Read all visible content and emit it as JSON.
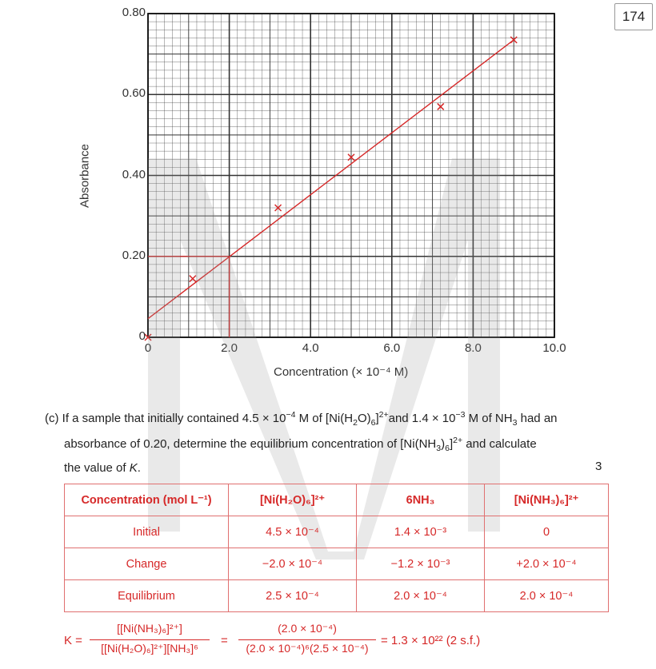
{
  "page_number": "174",
  "chart_data": {
    "type": "scatter",
    "xlabel": "Concentration (× 10⁻⁴ M)",
    "ylabel": "Absorbance",
    "xlim": [
      0,
      10
    ],
    "ylim": [
      0,
      0.8
    ],
    "x_ticks": [
      "0",
      "2.0",
      "4.0",
      "6.0",
      "8.0",
      "10.0"
    ],
    "y_ticks": [
      "0",
      "0.20",
      "0.40",
      "0.60",
      "0.80"
    ],
    "grid": true,
    "points": [
      {
        "x": 0,
        "y": 0
      },
      {
        "x": 1.1,
        "y": 0.145
      },
      {
        "x": 3.2,
        "y": 0.32
      },
      {
        "x": 5.0,
        "y": 0.445
      },
      {
        "x": 7.2,
        "y": 0.57
      },
      {
        "x": 9.0,
        "y": 0.735
      }
    ],
    "fit_line": {
      "x": [
        0,
        9.0
      ],
      "y": [
        0.046,
        0.735
      ]
    },
    "reading": {
      "x": 2.0,
      "y": 0.2
    }
  },
  "question": {
    "label": "(c)",
    "line1_a": "If a sample that initially contained 4.5 × 10",
    "line1_b": "−4",
    "line1_c": " M of [Ni(H",
    "line1_d": "2",
    "line1_e": "O)",
    "line1_f": "6",
    "line1_g": "]",
    "line1_h": "2+",
    "line1_i": "and 1.4 × 10",
    "line1_j": "−3",
    "line1_k": " M of NH",
    "line1_l": "3",
    "line1_m": " had an",
    "line2_a": "absorbance of 0.20, determine the equilibrium concentration of [Ni(NH",
    "line2_b": "3",
    "line2_c": ")",
    "line2_d": "6",
    "line2_e": "]",
    "line2_f": "2+",
    "line2_g": " and calculate",
    "line3_a": "the value of ",
    "line3_b": "K",
    "line3_c": ".",
    "marks": "3"
  },
  "table": {
    "headers": [
      "Concentration (mol L⁻¹)",
      "[Ni(H₂O)₆]²⁺",
      "6NH₃",
      "[Ni(NH₃)₆]²⁺"
    ],
    "rows": [
      [
        "Initial",
        "4.5 × 10⁻⁴",
        "1.4 × 10⁻³",
        "0"
      ],
      [
        "Change",
        "−2.0 × 10⁻⁴",
        "−1.2 × 10⁻³",
        "+2.0 × 10⁻⁴"
      ],
      [
        "Equilibrium",
        "2.5 × 10⁻⁴",
        "2.0 × 10⁻⁴",
        "2.0 × 10⁻⁴"
      ]
    ]
  },
  "k_expression": {
    "lhs": "K =",
    "num1": "[[Ni(NH₃)₆]²⁺]",
    "den1": "[[Ni(H₂O)₆]²⁺][NH₃]⁶",
    "eq": "=",
    "num2": "(2.0 × 10⁻⁴)",
    "den2": "(2.0 × 10⁻⁴)⁶(2.5 × 10⁻⁴)",
    "result": "= 1.3 × 10²² (2 s.f.)"
  },
  "colors": {
    "accent": "#d62828",
    "grid": "#333333"
  }
}
